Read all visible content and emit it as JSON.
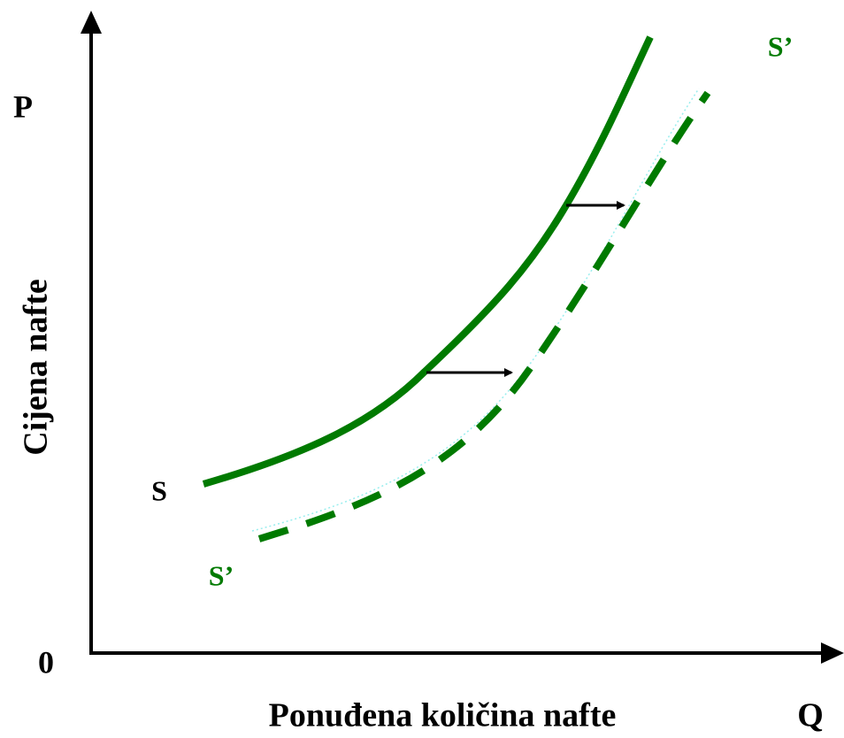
{
  "axes": {
    "y_symbol": "P",
    "y_label": "Cijena nafte",
    "origin": "0",
    "x_label": "Ponuđena količina nafte",
    "x_symbol": "Q"
  },
  "curves": [
    {
      "label": "S"
    },
    {
      "label": "S’"
    },
    {
      "label": "S’"
    }
  ]
}
